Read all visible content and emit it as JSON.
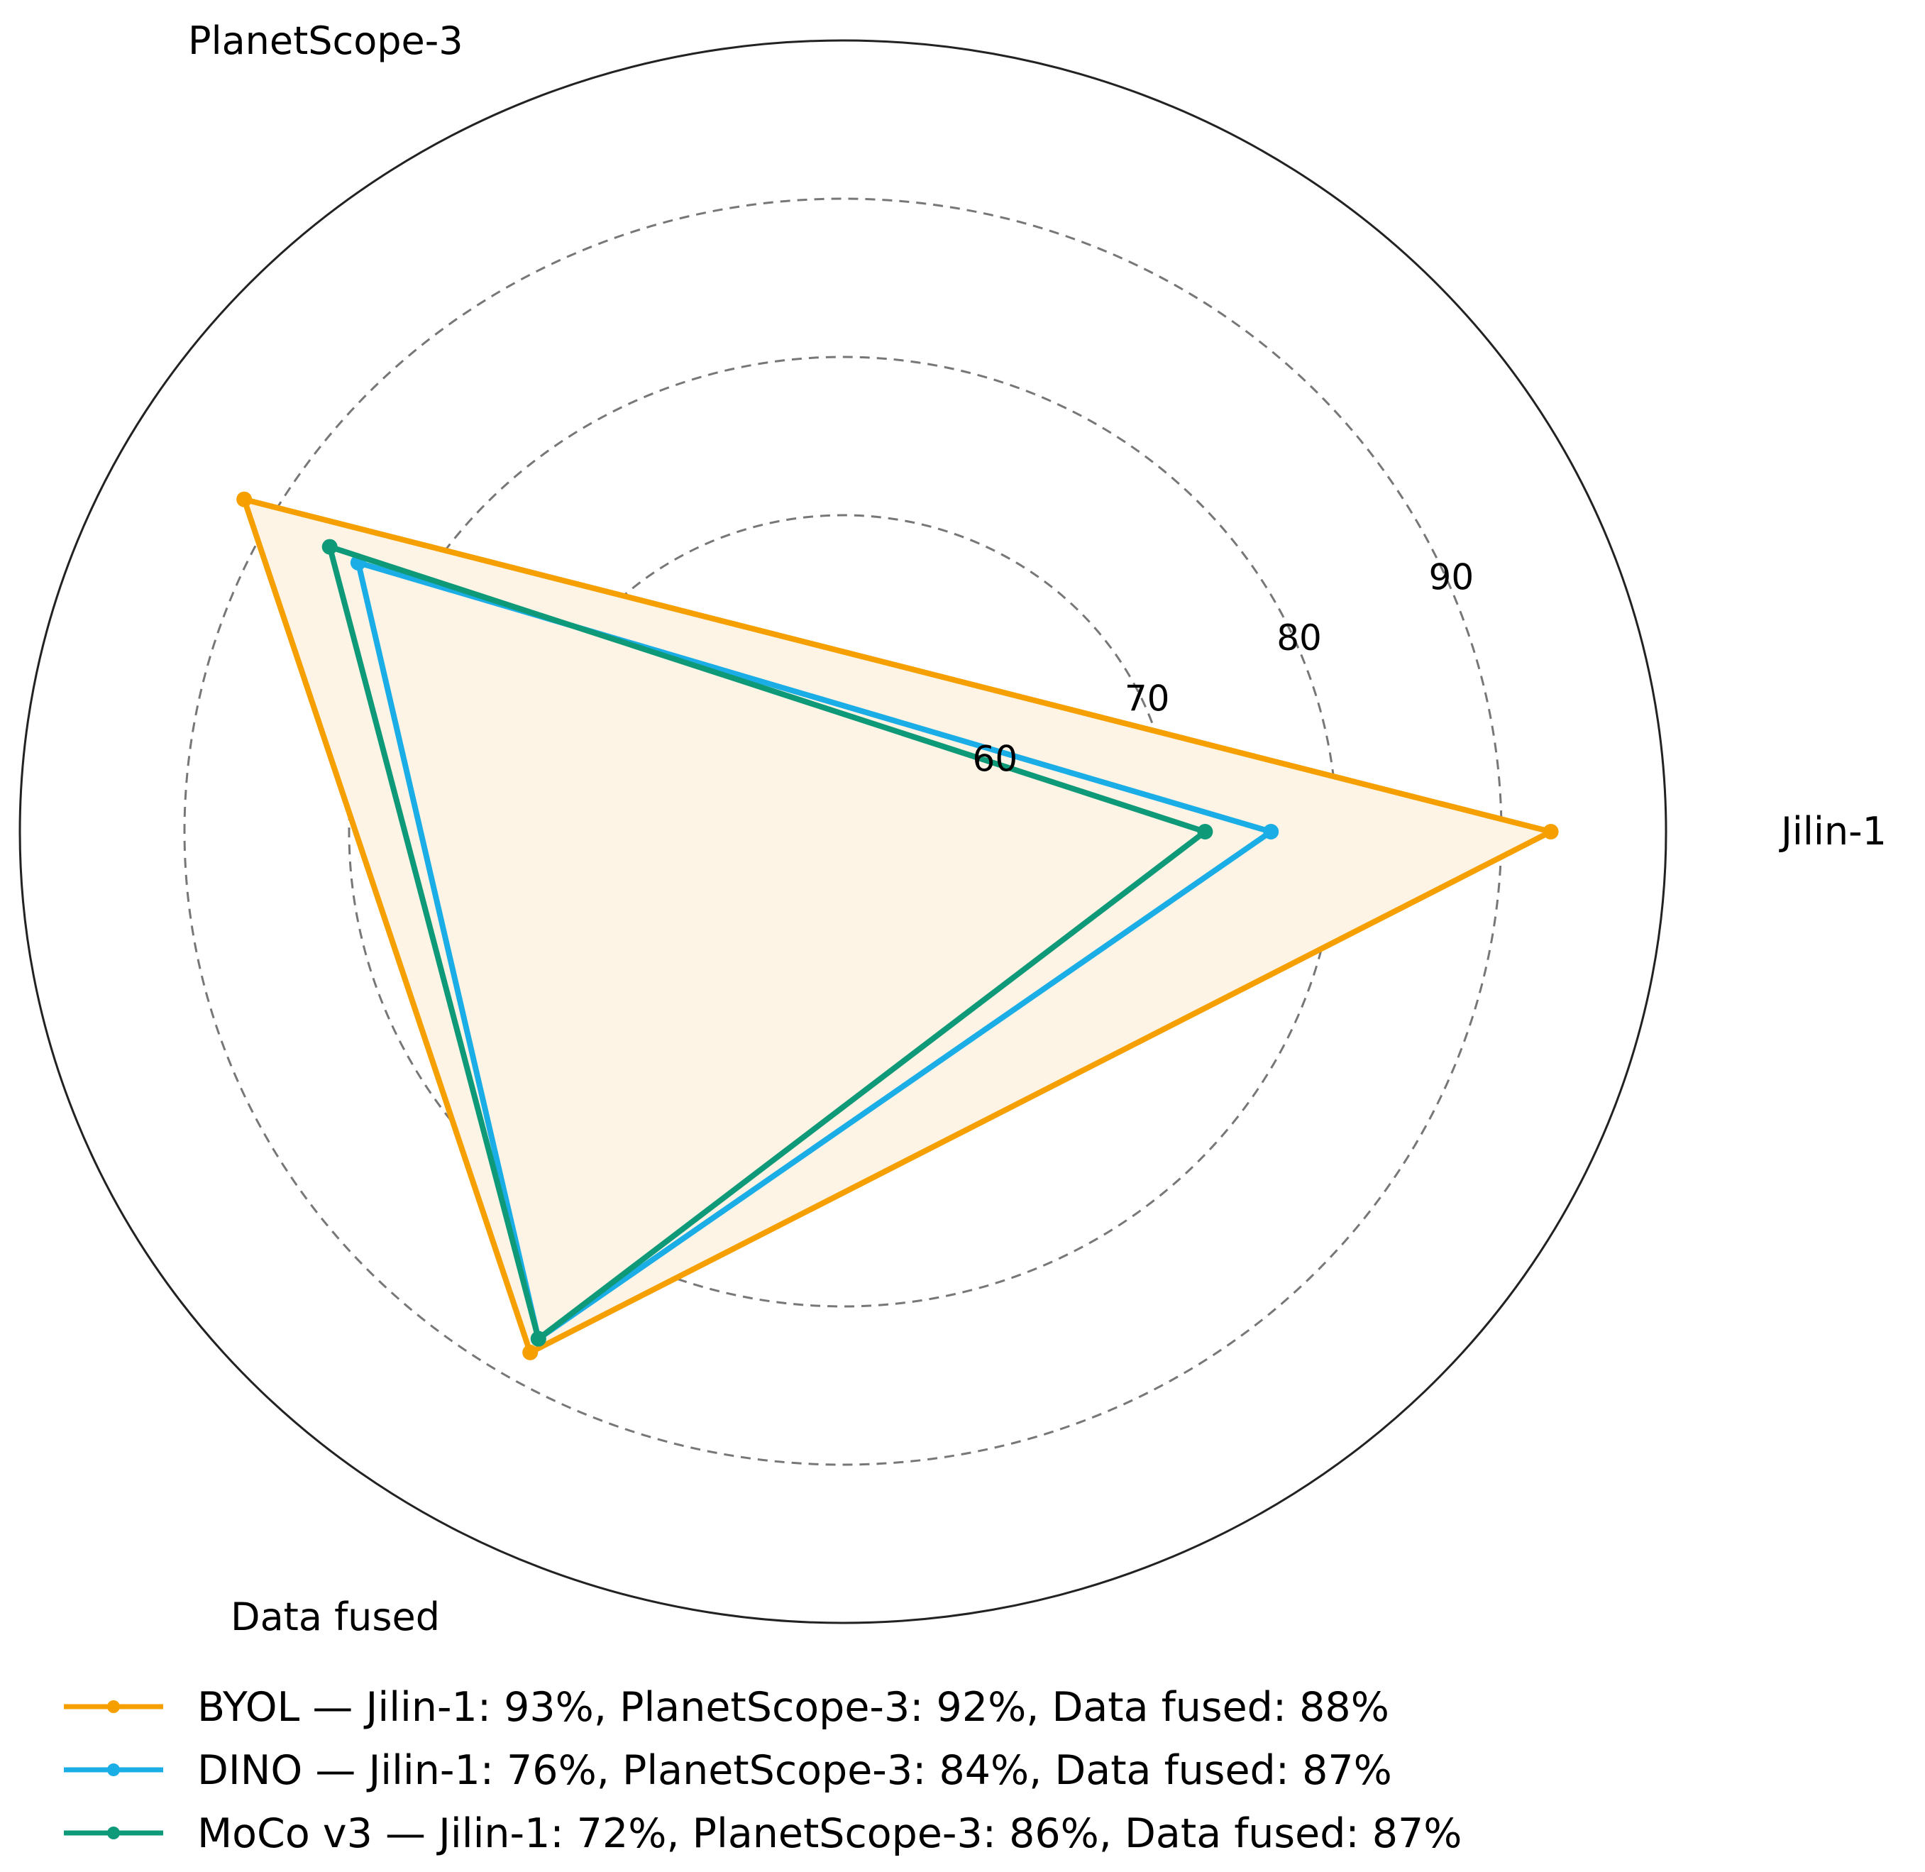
{
  "chart_data": {
    "type": "radar",
    "axes": [
      "Jilin-1",
      "PlanetScope-3",
      "Data fused"
    ],
    "rticks": [
      "60",
      "70",
      "80",
      "90"
    ],
    "rtick_values": [
      60,
      70,
      80,
      90
    ],
    "rlim": [
      50,
      100
    ],
    "grid": "dashed circles",
    "legend_position": "bottom-left",
    "series": [
      {
        "name": "BYOL",
        "values": [
          93,
          92,
          88
        ],
        "color": "#F5A000",
        "fill": "#FDF4E6",
        "legend_label": "BYOL — Jilin-1: 93%, PlanetScope-3: 92%, Data fused: 88%"
      },
      {
        "name": "DINO",
        "values": [
          76,
          84,
          87
        ],
        "color": "#1AADE6",
        "legend_label": "DINO — Jilin-1: 76%, PlanetScope-3: 84%, Data fused: 87%"
      },
      {
        "name": "MoCo v3",
        "values": [
          72,
          86,
          87
        ],
        "color": "#0E9A78",
        "legend_label": "MoCo v3 — Jilin-1: 72%, PlanetScope-3: 86%, Data fused: 87%"
      }
    ]
  }
}
